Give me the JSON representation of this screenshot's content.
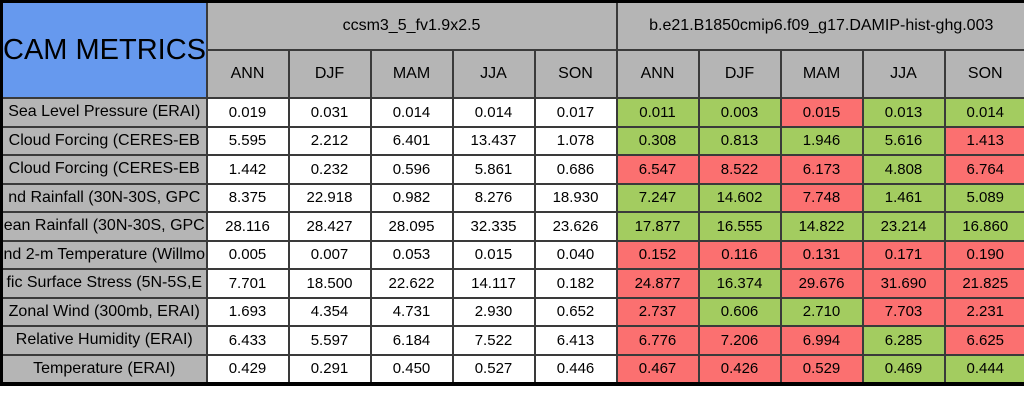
{
  "colors": {
    "title_bg": "#6699ee",
    "header_bg": "#b5b5b5",
    "good": "#a3cc60",
    "bad": "#fb7070"
  },
  "chart_data": {
    "type": "table",
    "title": "CAM METRICS",
    "column_groups": [
      {
        "name": "ccsm3_5_fv1.9x2.5",
        "seasons": [
          "ANN",
          "DJF",
          "MAM",
          "JJA",
          "SON"
        ]
      },
      {
        "name": "b.e21.B1850cmip6.f09_g17.DAMIP-hist-ghg.003",
        "seasons": [
          "ANN",
          "DJF",
          "MAM",
          "JJA",
          "SON"
        ]
      }
    ],
    "legend": {
      "good_color_meaning": "green cell",
      "bad_color_meaning": "red cell"
    },
    "rows": [
      {
        "label": "Sea Level Pressure (ERAI)",
        "left": [
          "0.019",
          "0.031",
          "0.014",
          "0.014",
          "0.017"
        ],
        "right": [
          {
            "v": "0.011",
            "flag": "good"
          },
          {
            "v": "0.003",
            "flag": "good"
          },
          {
            "v": "0.015",
            "flag": "bad"
          },
          {
            "v": "0.013",
            "flag": "good"
          },
          {
            "v": "0.014",
            "flag": "good"
          }
        ]
      },
      {
        "label": "Cloud Forcing (CERES-EB",
        "left": [
          "5.595",
          "2.212",
          "6.401",
          "13.437",
          "1.078"
        ],
        "right": [
          {
            "v": "0.308",
            "flag": "good"
          },
          {
            "v": "0.813",
            "flag": "good"
          },
          {
            "v": "1.946",
            "flag": "good"
          },
          {
            "v": "5.616",
            "flag": "good"
          },
          {
            "v": "1.413",
            "flag": "bad"
          }
        ]
      },
      {
        "label": "Cloud Forcing (CERES-EB",
        "left": [
          "1.442",
          "0.232",
          "0.596",
          "5.861",
          "0.686"
        ],
        "right": [
          {
            "v": "6.547",
            "flag": "bad"
          },
          {
            "v": "8.522",
            "flag": "bad"
          },
          {
            "v": "6.173",
            "flag": "bad"
          },
          {
            "v": "4.808",
            "flag": "good"
          },
          {
            "v": "6.764",
            "flag": "bad"
          }
        ]
      },
      {
        "label": "nd Rainfall (30N-30S, GPC",
        "left": [
          "8.375",
          "22.918",
          "0.982",
          "8.276",
          "18.930"
        ],
        "right": [
          {
            "v": "7.247",
            "flag": "good"
          },
          {
            "v": "14.602",
            "flag": "good"
          },
          {
            "v": "7.748",
            "flag": "bad"
          },
          {
            "v": "1.461",
            "flag": "good"
          },
          {
            "v": "5.089",
            "flag": "good"
          }
        ]
      },
      {
        "label": "ean Rainfall (30N-30S, GPC",
        "left": [
          "28.116",
          "28.427",
          "28.095",
          "32.335",
          "23.626"
        ],
        "right": [
          {
            "v": "17.877",
            "flag": "good"
          },
          {
            "v": "16.555",
            "flag": "good"
          },
          {
            "v": "14.822",
            "flag": "good"
          },
          {
            "v": "23.214",
            "flag": "good"
          },
          {
            "v": "16.860",
            "flag": "good"
          }
        ]
      },
      {
        "label": "nd 2-m Temperature (Willmo",
        "left": [
          "0.005",
          "0.007",
          "0.053",
          "0.015",
          "0.040"
        ],
        "right": [
          {
            "v": "0.152",
            "flag": "bad"
          },
          {
            "v": "0.116",
            "flag": "bad"
          },
          {
            "v": "0.131",
            "flag": "bad"
          },
          {
            "v": "0.171",
            "flag": "bad"
          },
          {
            "v": "0.190",
            "flag": "bad"
          }
        ]
      },
      {
        "label": "fic Surface Stress (5N-5S,E",
        "left": [
          "7.701",
          "18.500",
          "22.622",
          "14.117",
          "0.182"
        ],
        "right": [
          {
            "v": "24.877",
            "flag": "bad"
          },
          {
            "v": "16.374",
            "flag": "good"
          },
          {
            "v": "29.676",
            "flag": "bad"
          },
          {
            "v": "31.690",
            "flag": "bad"
          },
          {
            "v": "21.825",
            "flag": "bad"
          }
        ]
      },
      {
        "label": "Zonal Wind (300mb, ERAI)",
        "left": [
          "1.693",
          "4.354",
          "4.731",
          "2.930",
          "0.652"
        ],
        "right": [
          {
            "v": "2.737",
            "flag": "bad"
          },
          {
            "v": "0.606",
            "flag": "good"
          },
          {
            "v": "2.710",
            "flag": "good"
          },
          {
            "v": "7.703",
            "flag": "bad"
          },
          {
            "v": "2.231",
            "flag": "bad"
          }
        ]
      },
      {
        "label": "Relative Humidity (ERAI)",
        "left": [
          "6.433",
          "5.597",
          "6.184",
          "7.522",
          "6.413"
        ],
        "right": [
          {
            "v": "6.776",
            "flag": "bad"
          },
          {
            "v": "7.206",
            "flag": "bad"
          },
          {
            "v": "6.994",
            "flag": "bad"
          },
          {
            "v": "6.285",
            "flag": "good"
          },
          {
            "v": "6.625",
            "flag": "bad"
          }
        ]
      },
      {
        "label": "Temperature (ERAI)",
        "left": [
          "0.429",
          "0.291",
          "0.450",
          "0.527",
          "0.446"
        ],
        "right": [
          {
            "v": "0.467",
            "flag": "bad"
          },
          {
            "v": "0.426",
            "flag": "bad"
          },
          {
            "v": "0.529",
            "flag": "bad"
          },
          {
            "v": "0.469",
            "flag": "good"
          },
          {
            "v": "0.444",
            "flag": "good"
          }
        ]
      }
    ]
  }
}
